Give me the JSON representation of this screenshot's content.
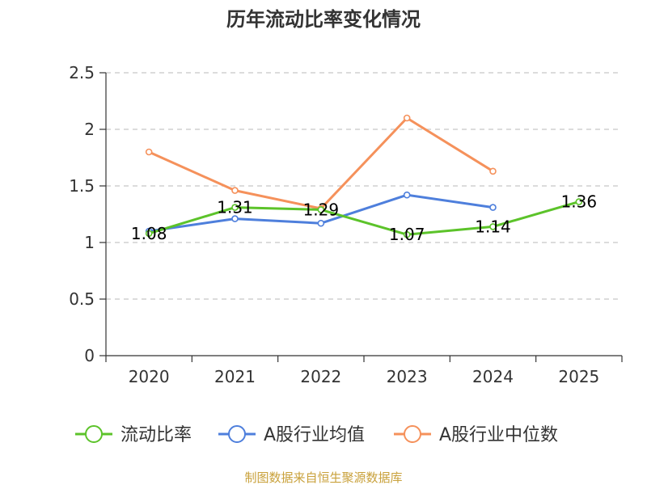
{
  "chart_data": {
    "type": "line",
    "title": "历年流动比率变化情况",
    "categories": [
      "2020",
      "2021",
      "2022",
      "2023",
      "2024",
      "2025"
    ],
    "ylim": [
      0,
      2.5
    ],
    "yticks": [
      "0",
      "0.5",
      "1",
      "1.5",
      "2",
      "2.5"
    ],
    "grid": true,
    "legend_position": "bottom",
    "series": [
      {
        "name": "流动比率",
        "color": "#5cc32a",
        "values": [
          1.08,
          1.31,
          1.29,
          1.07,
          1.14,
          1.36
        ],
        "labels": [
          "1.08",
          "1.31",
          "1.29",
          "1.07",
          "1.14",
          "1.36"
        ]
      },
      {
        "name": "A股行业均值",
        "color": "#4e7fdc",
        "values": [
          1.1,
          1.21,
          1.17,
          1.42,
          1.31,
          null
        ]
      },
      {
        "name": "A股行业中位数",
        "color": "#f5915b",
        "values": [
          1.8,
          1.46,
          1.3,
          2.1,
          1.63,
          null
        ]
      }
    ],
    "source": "制图数据来自恒生聚源数据库"
  }
}
